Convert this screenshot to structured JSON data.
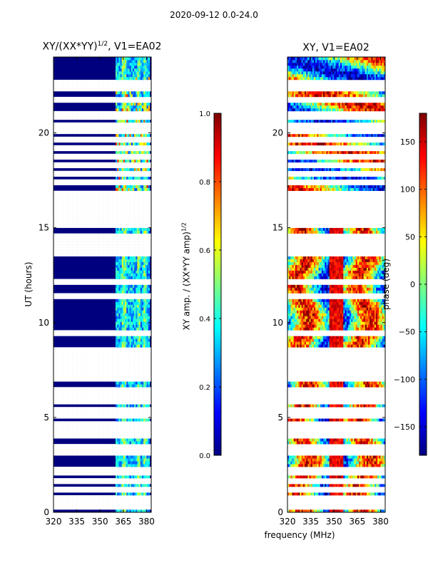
{
  "suptitle": "2020-09-12 0.0-24.0",
  "xlabel": "frequency (MHz)",
  "colors": {
    "jet": [
      "#00007f",
      "#0000ff",
      "#007fff",
      "#00ffff",
      "#7fff7f",
      "#ffff00",
      "#ff7f00",
      "#ff0000",
      "#7f0000"
    ],
    "flagged": "#ffffff",
    "axis": "#000000"
  },
  "chart_data": [
    {
      "type": "heatmap",
      "title_main": "XY/(XX*YY)",
      "title_sup": "1/2",
      "title_rest": ", V1=EA02",
      "xlabel": "",
      "ylabel": "UT (hours)",
      "xlim": [
        320,
        383
      ],
      "ylim": [
        0,
        24
      ],
      "xticks": [
        320,
        335,
        350,
        365,
        380
      ],
      "yticks": [
        0,
        5,
        10,
        15,
        20
      ],
      "quantity": "normalized cross-correlation amplitude",
      "band_structure": [
        {
          "freq_range": [
            320,
            360
          ],
          "typical_value": 0.05
        },
        {
          "freq_range": [
            360,
            380
          ],
          "typical_value": 0.3
        }
      ],
      "colorbar": {
        "label_main": "XY amp. / (XX*YY amp)",
        "label_sup": "1/2",
        "range": [
          0.0,
          1.0
        ],
        "ticks": [
          "0.0",
          "0.2",
          "0.4",
          "0.6",
          "0.8",
          "1.0"
        ],
        "tick_values": [
          0.0,
          0.2,
          0.4,
          0.6,
          0.8,
          1.0
        ]
      }
    },
    {
      "type": "heatmap",
      "title": "XY, V1=EA02",
      "xlabel": "",
      "ylabel": "",
      "xlim": [
        320,
        383
      ],
      "ylim": [
        0,
        24
      ],
      "xticks": [
        320,
        335,
        350,
        365,
        380
      ],
      "yticks": [
        0,
        5,
        10,
        15,
        20
      ],
      "quantity": "cross-correlation phase",
      "colorbar": {
        "label": "phase (deg)",
        "range": [
          -180,
          180
        ],
        "ticks": [
          "−150",
          "−100",
          "−50",
          "0",
          "50",
          "100",
          "150"
        ],
        "tick_values": [
          -150,
          -100,
          -50,
          0,
          50,
          100,
          150
        ]
      }
    }
  ],
  "flagged_hours": [
    0.25,
    0.5,
    0.75,
    1.25,
    1.6,
    2.05,
    2.3,
    3.1,
    3.5,
    4.1,
    4.4,
    4.6,
    5.1,
    5.4,
    5.8,
    6.1,
    6.4,
    7.1,
    7.3,
    7.6,
    7.8,
    8.1,
    8.3,
    8.6,
    9.5,
    11.4,
    12.2,
    13.6,
    14.0,
    14.3,
    14.6,
    15.1,
    15.3,
    15.6,
    15.9,
    16.2,
    16.5,
    16.8,
    17.4,
    17.9,
    18.3,
    18.7,
    19.2,
    19.6,
    20.1,
    20.4,
    20.8,
    21.0,
    21.8,
    22.3,
    22.7
  ]
}
